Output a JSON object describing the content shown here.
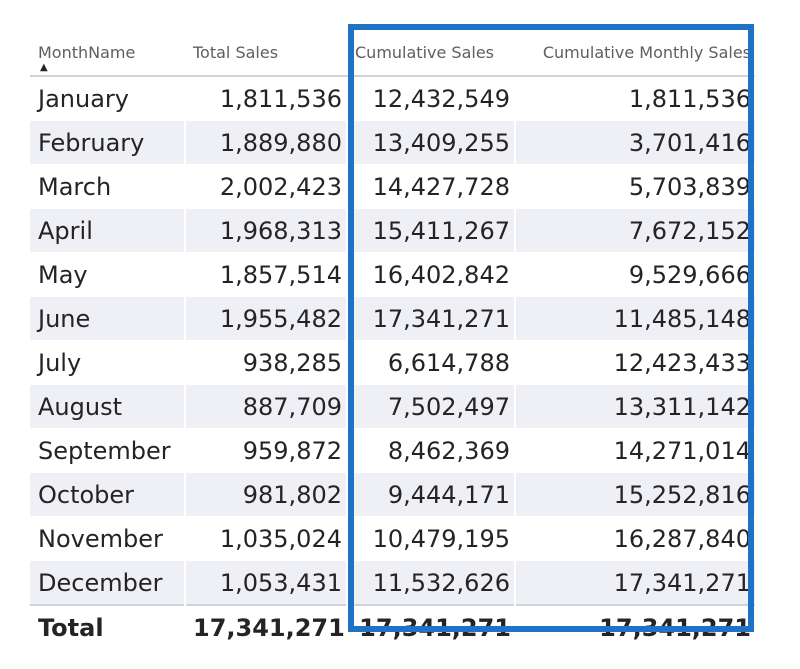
{
  "headers": {
    "month": "MonthName",
    "total_sales": "Total Sales",
    "cumulative_sales": "Cumulative Sales",
    "cumulative_monthly_sales": "Cumulative Monthly Sales"
  },
  "sort": {
    "column": "MonthName",
    "direction": "ascending",
    "icon": "sort-ascending-icon"
  },
  "rows": [
    {
      "month": "January",
      "total": "1,811,536",
      "cumulative": "12,432,549",
      "cumulative_monthly": "1,811,536"
    },
    {
      "month": "February",
      "total": "1,889,880",
      "cumulative": "13,409,255",
      "cumulative_monthly": "3,701,416"
    },
    {
      "month": "March",
      "total": "2,002,423",
      "cumulative": "14,427,728",
      "cumulative_monthly": "5,703,839"
    },
    {
      "month": "April",
      "total": "1,968,313",
      "cumulative": "15,411,267",
      "cumulative_monthly": "7,672,152"
    },
    {
      "month": "May",
      "total": "1,857,514",
      "cumulative": "16,402,842",
      "cumulative_monthly": "9,529,666"
    },
    {
      "month": "June",
      "total": "1,955,482",
      "cumulative": "17,341,271",
      "cumulative_monthly": "11,485,148"
    },
    {
      "month": "July",
      "total": "938,285",
      "cumulative": "6,614,788",
      "cumulative_monthly": "12,423,433"
    },
    {
      "month": "August",
      "total": "887,709",
      "cumulative": "7,502,497",
      "cumulative_monthly": "13,311,142"
    },
    {
      "month": "September",
      "total": "959,872",
      "cumulative": "8,462,369",
      "cumulative_monthly": "14,271,014"
    },
    {
      "month": "October",
      "total": "981,802",
      "cumulative": "9,444,171",
      "cumulative_monthly": "15,252,816"
    },
    {
      "month": "November",
      "total": "1,035,024",
      "cumulative": "10,479,195",
      "cumulative_monthly": "16,287,840"
    },
    {
      "month": "December",
      "total": "1,053,431",
      "cumulative": "11,532,626",
      "cumulative_monthly": "17,341,271"
    }
  ],
  "totals": {
    "label": "Total",
    "total": "17,341,271",
    "cumulative": "17,341,271",
    "cumulative_monthly": "17,341,271"
  },
  "colors": {
    "highlight_border": "#1f73c4",
    "band_row": "#eef0f5",
    "header_text": "#605e5c",
    "body_text": "#252423",
    "divider": "#cdd4dc"
  }
}
